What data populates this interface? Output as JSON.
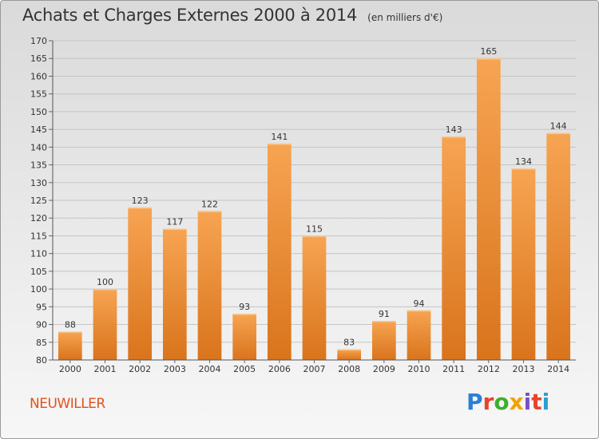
{
  "header": {
    "title": "Achats et Charges Externes 2000 à 2014",
    "subtitle": "(en milliers d'€)"
  },
  "footer": {
    "place": "NEUWILLER",
    "logo": [
      "P",
      "r",
      "o",
      "x",
      "i",
      "t",
      "i"
    ],
    "logo_colors": [
      "#2a7fd4",
      "#e8432b",
      "#3fae2e",
      "#f2a200",
      "#7a4fc8",
      "#e8432b",
      "#2a9fd4"
    ]
  },
  "chart_data": {
    "type": "bar",
    "title": "Achats et Charges Externes 2000 à 2014",
    "categories": [
      "2000",
      "2001",
      "2002",
      "2003",
      "2004",
      "2005",
      "2006",
      "2007",
      "2008",
      "2009",
      "2010",
      "2011",
      "2012",
      "2013",
      "2014"
    ],
    "values": [
      88,
      100,
      123,
      117,
      122,
      93,
      141,
      115,
      83,
      91,
      94,
      143,
      165,
      134,
      144
    ],
    "ylim": [
      80,
      170
    ],
    "yticks": [
      80,
      85,
      90,
      95,
      100,
      105,
      110,
      115,
      120,
      125,
      130,
      135,
      140,
      145,
      150,
      155,
      160,
      165,
      170
    ],
    "grid": true,
    "bar_color": "#f39c43",
    "xlabel": "",
    "ylabel": ""
  }
}
